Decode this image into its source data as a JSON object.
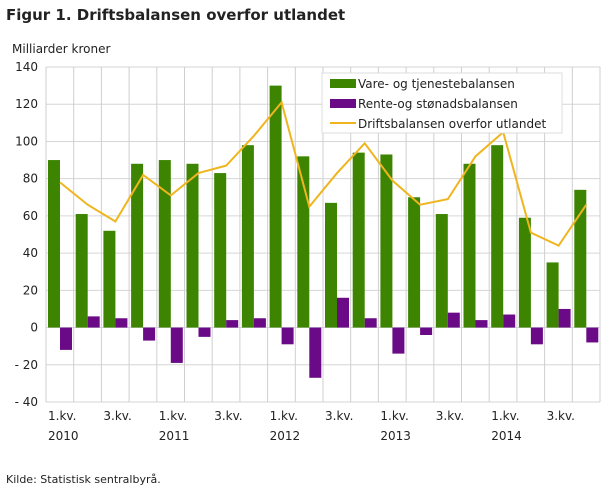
{
  "title": "Figur 1. Driftsbalansen overfor utlandet",
  "source": "Kilde: Statistisk sentralbyrå.",
  "chart_data": {
    "type": "bar",
    "ylabel": "Milliarder  kroner",
    "ylim": [
      -40,
      140
    ],
    "yticks": [
      140,
      120,
      100,
      80,
      60,
      40,
      20,
      0,
      -20,
      -40
    ],
    "ytick_labels": [
      "140",
      "120",
      "100",
      "80",
      "60",
      "40",
      "20",
      "0",
      "- 20",
      "- 40"
    ],
    "grid": true,
    "legend_position": "top-right",
    "categories": [
      "2010K1",
      "2010K2",
      "2010K3",
      "2010K4",
      "2011K1",
      "2011K2",
      "2011K3",
      "2011K4",
      "2012K1",
      "2012K2",
      "2012K3",
      "2012K4",
      "2013K1",
      "2013K2",
      "2013K3",
      "2013K4",
      "2014K1",
      "2014K2",
      "2014K3",
      "2014K4"
    ],
    "xtick_labels": [
      {
        "index": 0,
        "line1": "1.kv.",
        "line2": "2010"
      },
      {
        "index": 2,
        "line1": "3.kv.",
        "line2": ""
      },
      {
        "index": 4,
        "line1": "1.kv.",
        "line2": "2011"
      },
      {
        "index": 6,
        "line1": "3.kv.",
        "line2": ""
      },
      {
        "index": 8,
        "line1": "1.kv.",
        "line2": "2012"
      },
      {
        "index": 10,
        "line1": "3.kv.",
        "line2": ""
      },
      {
        "index": 12,
        "line1": "1.kv.",
        "line2": "2013"
      },
      {
        "index": 14,
        "line1": "3.kv.",
        "line2": ""
      },
      {
        "index": 16,
        "line1": "1.kv.",
        "line2": "2014"
      },
      {
        "index": 18,
        "line1": "3.kv.",
        "line2": ""
      }
    ],
    "series": [
      {
        "name": "Vare- og tjenestebalansen",
        "kind": "bar",
        "color": "#3d8500",
        "values": [
          90,
          61,
          52,
          88,
          90,
          88,
          83,
          98,
          130,
          92,
          67,
          94,
          93,
          70,
          61,
          88,
          98,
          59,
          35,
          74
        ]
      },
      {
        "name": "Rente-og stønadsbalansen",
        "kind": "bar",
        "color": "#6a0a86",
        "values": [
          -12,
          6,
          5,
          -7,
          -19,
          -5,
          4,
          5,
          -9,
          -27,
          16,
          5,
          -14,
          -4,
          8,
          4,
          7,
          -9,
          10,
          -8
        ]
      },
      {
        "name": "Driftsbalansen overfor utlandet",
        "kind": "line",
        "color": "#f0b51e",
        "values": [
          78,
          66,
          57,
          82,
          71,
          83,
          87,
          103,
          121,
          65,
          83,
          99,
          79,
          66,
          69,
          92,
          105,
          51,
          44,
          66
        ]
      }
    ]
  }
}
